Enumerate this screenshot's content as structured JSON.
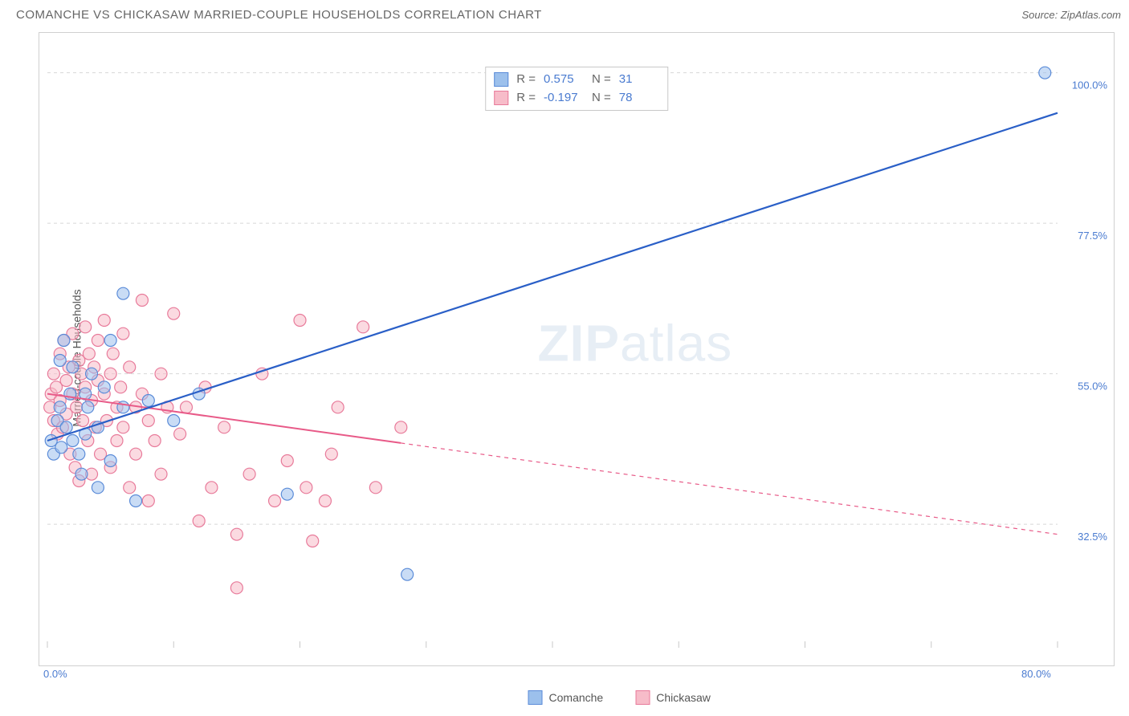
{
  "title": "COMANCHE VS CHICKASAW MARRIED-COUPLE HOUSEHOLDS CORRELATION CHART",
  "source_label": "Source: ZipAtlas.com",
  "y_axis_label": "Married-couple Households",
  "watermark": {
    "bold": "ZIP",
    "rest": "atlas"
  },
  "chart": {
    "type": "scatter",
    "xlim": [
      0,
      80
    ],
    "ylim": [
      15,
      105
    ],
    "x_ticks": [
      0,
      10,
      20,
      30,
      40,
      50,
      60,
      70,
      80
    ],
    "x_tick_labels": {
      "0": "0.0%",
      "80": "80.0%"
    },
    "y_grid": [
      32.5,
      55.0,
      77.5,
      100.0
    ],
    "y_grid_labels": [
      "32.5%",
      "55.0%",
      "77.5%",
      "100.0%"
    ],
    "grid_color": "#d8d8d8",
    "grid_dash": "4,4",
    "border_color": "#d0d0d0",
    "background_color": "#ffffff",
    "axis_label_color": "#4a7bd0",
    "point_radius": 7.5,
    "point_opacity": 0.55,
    "series": {
      "comanche": {
        "label": "Comanche",
        "fill": "#9cc0ec",
        "stroke": "#5a8bd8",
        "trend_color": "#2a5fc7",
        "trend_width": 2.2,
        "trend": {
          "x1": 0,
          "y1": 45,
          "x2": 80,
          "y2": 94,
          "solid_until": 80
        },
        "stats": {
          "R": "0.575",
          "N": "31"
        },
        "points": [
          [
            0.3,
            45
          ],
          [
            0.5,
            43
          ],
          [
            0.8,
            48
          ],
          [
            1.0,
            50
          ],
          [
            1.0,
            57
          ],
          [
            1.1,
            44
          ],
          [
            1.3,
            60
          ],
          [
            1.5,
            47
          ],
          [
            1.8,
            52
          ],
          [
            2.0,
            56
          ],
          [
            2.0,
            45
          ],
          [
            2.5,
            43
          ],
          [
            2.7,
            40
          ],
          [
            3.0,
            52
          ],
          [
            3.0,
            46
          ],
          [
            3.2,
            50
          ],
          [
            3.5,
            55
          ],
          [
            4.0,
            38
          ],
          [
            4.0,
            47
          ],
          [
            4.5,
            53
          ],
          [
            5.0,
            42
          ],
          [
            5.0,
            60
          ],
          [
            6.0,
            67
          ],
          [
            6.0,
            50
          ],
          [
            7.0,
            36
          ],
          [
            8.0,
            51
          ],
          [
            10.0,
            48
          ],
          [
            12.0,
            52
          ],
          [
            19.0,
            37
          ],
          [
            28.5,
            25
          ],
          [
            79.0,
            100
          ]
        ]
      },
      "chickasaw": {
        "label": "Chickasaw",
        "fill": "#f7bcc9",
        "stroke": "#e87a9a",
        "trend_color": "#e85a88",
        "trend_width": 2.0,
        "trend": {
          "x1": 0,
          "y1": 52,
          "x2": 80,
          "y2": 31,
          "solid_until": 28
        },
        "stats": {
          "R": "-0.197",
          "N": "78"
        },
        "points": [
          [
            0.2,
            50
          ],
          [
            0.3,
            52
          ],
          [
            0.5,
            48
          ],
          [
            0.5,
            55
          ],
          [
            0.7,
            53
          ],
          [
            0.8,
            46
          ],
          [
            1.0,
            58
          ],
          [
            1.0,
            51
          ],
          [
            1.2,
            47
          ],
          [
            1.3,
            60
          ],
          [
            1.5,
            54
          ],
          [
            1.5,
            49
          ],
          [
            1.7,
            56
          ],
          [
            1.8,
            43
          ],
          [
            2.0,
            52
          ],
          [
            2.0,
            61
          ],
          [
            2.2,
            41
          ],
          [
            2.3,
            50
          ],
          [
            2.5,
            57
          ],
          [
            2.5,
            39
          ],
          [
            2.7,
            55
          ],
          [
            2.8,
            48
          ],
          [
            3.0,
            53
          ],
          [
            3.0,
            62
          ],
          [
            3.2,
            45
          ],
          [
            3.3,
            58
          ],
          [
            3.5,
            51
          ],
          [
            3.5,
            40
          ],
          [
            3.7,
            56
          ],
          [
            3.8,
            47
          ],
          [
            4.0,
            54
          ],
          [
            4.0,
            60
          ],
          [
            4.2,
            43
          ],
          [
            4.5,
            52
          ],
          [
            4.5,
            63
          ],
          [
            4.7,
            48
          ],
          [
            5.0,
            55
          ],
          [
            5.0,
            41
          ],
          [
            5.2,
            58
          ],
          [
            5.5,
            50
          ],
          [
            5.5,
            45
          ],
          [
            5.8,
            53
          ],
          [
            6.0,
            61
          ],
          [
            6.0,
            47
          ],
          [
            6.5,
            38
          ],
          [
            6.5,
            56
          ],
          [
            7.0,
            50
          ],
          [
            7.0,
            43
          ],
          [
            7.5,
            66
          ],
          [
            7.5,
            52
          ],
          [
            8.0,
            48
          ],
          [
            8.0,
            36
          ],
          [
            8.5,
            45
          ],
          [
            9.0,
            55
          ],
          [
            9.0,
            40
          ],
          [
            9.5,
            50
          ],
          [
            10.0,
            64
          ],
          [
            10.5,
            46
          ],
          [
            11.0,
            50
          ],
          [
            12.0,
            33
          ],
          [
            12.5,
            53
          ],
          [
            13.0,
            38
          ],
          [
            14.0,
            47
          ],
          [
            15.0,
            31
          ],
          [
            15.0,
            23
          ],
          [
            16.0,
            40
          ],
          [
            17.0,
            55
          ],
          [
            18.0,
            36
          ],
          [
            19.0,
            42
          ],
          [
            20.0,
            63
          ],
          [
            20.5,
            38
          ],
          [
            21.0,
            30
          ],
          [
            22.0,
            36
          ],
          [
            22.5,
            43
          ],
          [
            23.0,
            50
          ],
          [
            25.0,
            62
          ],
          [
            26.0,
            38
          ],
          [
            28.0,
            47
          ]
        ]
      }
    }
  },
  "legend_x": [
    {
      "label": "Comanche",
      "fill": "#9cc0ec",
      "stroke": "#5a8bd8"
    },
    {
      "label": "Chickasaw",
      "fill": "#f7bcc9",
      "stroke": "#e87a9a"
    }
  ]
}
